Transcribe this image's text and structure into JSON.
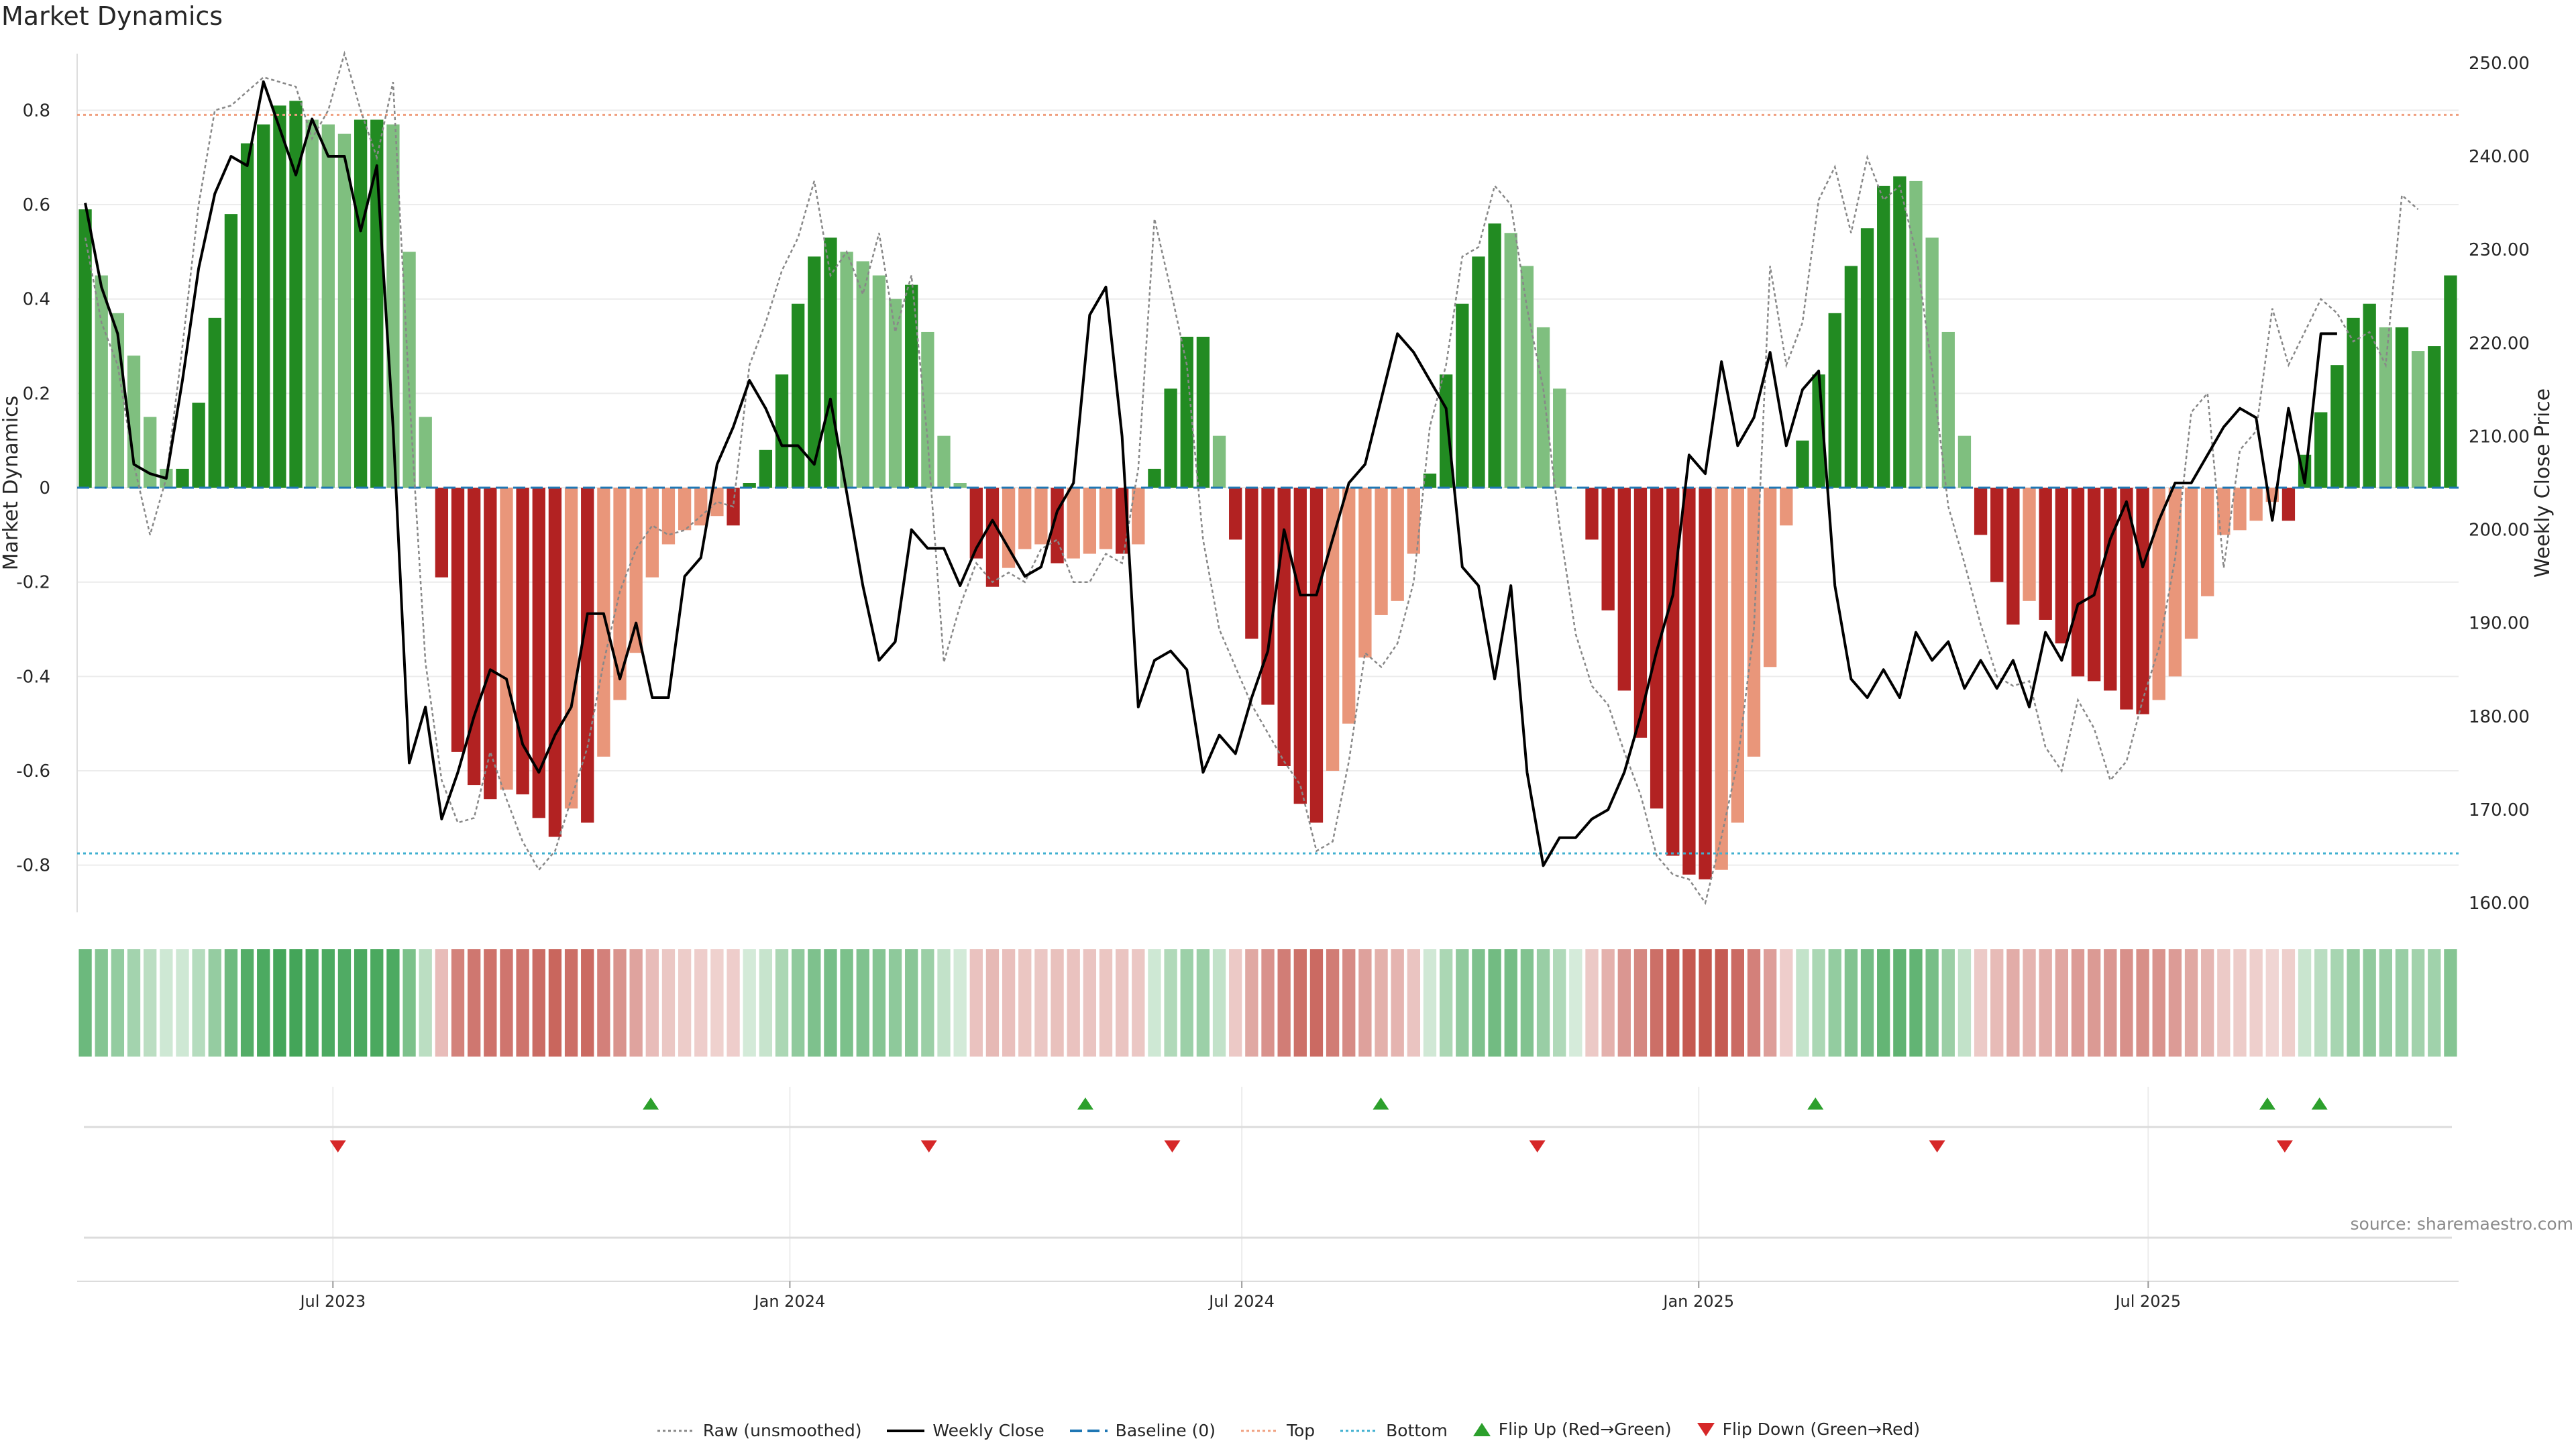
{
  "title": "Market Dynamics",
  "source": "source: sharemaestro.com",
  "chart_data": {
    "type": "bar",
    "title": "Market Dynamics",
    "ylabel": "Market Dynamics",
    "ylabel_right": "Weekly Close Price",
    "ylim": [
      -0.9,
      0.92
    ],
    "ylim_right": [
      159,
      251
    ],
    "yticks": [
      {
        "v": 0.8,
        "l": "0.8"
      },
      {
        "v": 0.6,
        "l": "0.6"
      },
      {
        "v": 0.4,
        "l": "0.4"
      },
      {
        "v": 0.2,
        "l": "0.2"
      },
      {
        "v": 0,
        "l": "0"
      },
      {
        "v": -0.2,
        "l": "-0.2"
      },
      {
        "v": -0.4,
        "l": "-0.4"
      },
      {
        "v": -0.6,
        "l": "-0.6"
      },
      {
        "v": -0.8,
        "l": "-0.8"
      }
    ],
    "yticks_right": [
      {
        "v": 250,
        "l": "250.00"
      },
      {
        "v": 240,
        "l": "240.00"
      },
      {
        "v": 230,
        "l": "230.00"
      },
      {
        "v": 220,
        "l": "220.00"
      },
      {
        "v": 210,
        "l": "210.00"
      },
      {
        "v": 200,
        "l": "200.00"
      },
      {
        "v": 190,
        "l": "190.00"
      },
      {
        "v": 180,
        "l": "180.00"
      },
      {
        "v": 170,
        "l": "170.00"
      },
      {
        "v": 160,
        "l": "160.00"
      }
    ],
    "x_start": "2023-03-20",
    "x_end": "2025-11-03",
    "xticks": [
      {
        "date": "2023-07-01",
        "label": "Jul 2023"
      },
      {
        "date": "2024-01-01",
        "label": "Jan 2024"
      },
      {
        "date": "2024-07-01",
        "label": "Jul 2024"
      },
      {
        "date": "2025-01-01",
        "label": "Jan 2025"
      },
      {
        "date": "2025-07-01",
        "label": "Jul 2025"
      }
    ],
    "top_line": 0.79,
    "bottom_line": -0.775,
    "baseline": 0,
    "colors": {
      "strong_up": "#228b22",
      "weak_up": "#7fbf7f",
      "strong_down": "#b22222",
      "weak_down": "#e9967a",
      "top": "#f0a080",
      "bottom": "#40b0d0",
      "baseline": "#1f77b4",
      "raw": "#888888",
      "close": "#000000",
      "flip_up": "#2ca02c",
      "flip_down": "#d62728"
    },
    "series": [
      {
        "name": "Market Dynamics (bars)",
        "values": [
          0.59,
          0.45,
          0.37,
          0.28,
          0.15,
          0.04,
          0.04,
          0.18,
          0.36,
          0.58,
          0.73,
          0.77,
          0.81,
          0.82,
          0.78,
          0.77,
          0.75,
          0.78,
          0.78,
          0.77,
          0.5,
          0.15,
          -0.19,
          -0.56,
          -0.63,
          -0.66,
          -0.64,
          -0.65,
          -0.7,
          -0.74,
          -0.68,
          -0.71,
          -0.57,
          -0.45,
          -0.35,
          -0.19,
          -0.12,
          -0.09,
          -0.08,
          -0.06,
          -0.08,
          0.01,
          0.08,
          0.24,
          0.39,
          0.49,
          0.53,
          0.5,
          0.48,
          0.45,
          0.4,
          0.43,
          0.33,
          0.11,
          0.01,
          -0.15,
          -0.21,
          -0.17,
          -0.13,
          -0.12,
          -0.16,
          -0.15,
          -0.14,
          -0.13,
          -0.14,
          -0.12,
          0.04,
          0.21,
          0.32,
          0.32,
          0.11,
          -0.11,
          -0.32,
          -0.46,
          -0.59,
          -0.67,
          -0.71,
          -0.6,
          -0.5,
          -0.36,
          -0.27,
          -0.24,
          -0.14,
          0.03,
          0.24,
          0.39,
          0.49,
          0.56,
          0.54,
          0.47,
          0.34,
          0.21,
          0.0,
          -0.11,
          -0.26,
          -0.43,
          -0.53,
          -0.68,
          -0.78,
          -0.82,
          -0.83,
          -0.81,
          -0.71,
          -0.57,
          -0.38,
          -0.08,
          0.1,
          0.24,
          0.37,
          0.47,
          0.55,
          0.64,
          0.66,
          0.65,
          0.53,
          0.33,
          0.11,
          -0.1,
          -0.2,
          -0.29,
          -0.24,
          -0.28,
          -0.33,
          -0.4,
          -0.41,
          -0.43,
          -0.47,
          -0.48,
          -0.45,
          -0.4,
          -0.32,
          -0.23,
          -0.1,
          -0.09,
          -0.07,
          -0.03,
          -0.07,
          0.07,
          0.16,
          0.26,
          0.36,
          0.39,
          0.34,
          0.34,
          0.29,
          0.3,
          0.45
        ]
      },
      {
        "name": "Raw (unsmoothed)",
        "values": [
          0.53,
          0.35,
          0.26,
          0.05,
          -0.1,
          0.02,
          0.3,
          0.6,
          0.8,
          0.81,
          0.84,
          0.87,
          0.86,
          0.85,
          0.74,
          0.8,
          0.92,
          0.8,
          0.7,
          0.86,
          0.2,
          -0.37,
          -0.62,
          -0.71,
          -0.7,
          -0.56,
          -0.66,
          -0.75,
          -0.81,
          -0.77,
          -0.66,
          -0.55,
          -0.37,
          -0.22,
          -0.13,
          -0.08,
          -0.1,
          -0.09,
          -0.06,
          -0.03,
          -0.04,
          0.26,
          0.35,
          0.46,
          0.53,
          0.65,
          0.45,
          0.5,
          0.41,
          0.54,
          0.33,
          0.45,
          0.1,
          -0.37,
          -0.25,
          -0.16,
          -0.2,
          -0.18,
          -0.2,
          -0.13,
          -0.11,
          -0.2,
          -0.2,
          -0.14,
          -0.16,
          0.04,
          0.57,
          0.42,
          0.26,
          -0.11,
          -0.3,
          -0.38,
          -0.46,
          -0.52,
          -0.58,
          -0.63,
          -0.77,
          -0.75,
          -0.58,
          -0.35,
          -0.38,
          -0.33,
          -0.2,
          0.13,
          0.26,
          0.49,
          0.51,
          0.64,
          0.6,
          0.38,
          0.21,
          -0.08,
          -0.31,
          -0.42,
          -0.46,
          -0.56,
          -0.65,
          -0.78,
          -0.82,
          -0.83,
          -0.88,
          -0.74,
          -0.58,
          -0.3,
          0.47,
          0.26,
          0.35,
          0.61,
          0.68,
          0.54,
          0.7,
          0.61,
          0.64,
          0.5,
          0.25,
          -0.04,
          -0.16,
          -0.29,
          -0.4,
          -0.42,
          -0.41,
          -0.55,
          -0.6,
          -0.45,
          -0.51,
          -0.62,
          -0.58,
          -0.45,
          -0.34,
          -0.15,
          0.16,
          0.2,
          -0.17,
          0.08,
          0.12,
          0.38,
          0.26,
          0.33,
          0.4,
          0.37,
          0.31,
          0.33,
          0.26,
          0.62,
          0.59
        ]
      },
      {
        "name": "Weekly Close",
        "values": [
          235,
          226,
          221,
          207,
          206,
          205.5,
          216,
          228,
          236,
          240,
          239,
          248,
          243,
          238,
          244,
          240,
          240,
          232,
          239,
          211,
          175,
          181,
          169,
          174,
          180,
          185,
          184,
          177,
          174,
          178,
          181,
          191,
          191,
          184,
          190,
          182,
          182,
          195,
          197,
          207,
          211,
          216,
          213,
          209,
          209,
          207,
          214,
          204,
          194,
          186,
          188,
          200,
          198,
          198,
          194,
          198,
          201,
          198,
          195,
          196,
          202,
          205,
          223,
          226,
          210,
          181,
          186,
          187,
          185,
          174,
          178,
          176,
          182,
          187,
          200,
          193,
          193,
          199,
          205,
          207,
          214,
          221,
          219,
          216,
          213,
          196,
          194,
          184,
          194,
          174,
          164,
          167,
          167,
          169,
          170,
          174,
          180,
          187,
          193,
          208,
          206,
          218,
          209,
          212,
          219,
          209,
          215,
          217,
          194,
          184,
          182,
          185,
          182,
          189,
          186,
          188,
          183,
          186,
          183,
          186,
          181,
          189,
          186,
          192,
          193,
          199,
          203,
          196,
          201,
          205,
          205,
          208,
          211,
          213,
          212,
          201,
          213,
          205,
          221,
          221
        ]
      }
    ],
    "flip_up_dates": [
      "2023-11-06",
      "2024-04-29",
      "2024-08-26",
      "2025-02-17",
      "2025-08-18",
      "2025-09-08"
    ],
    "flip_down_dates": [
      "2023-07-03",
      "2024-02-26",
      "2024-06-03",
      "2024-10-28",
      "2025-04-07",
      "2025-08-25"
    ]
  },
  "legend": [
    {
      "label": "Raw (unsmoothed)",
      "icon": "dotted-line"
    },
    {
      "label": "Weekly Close",
      "icon": "solid-line"
    },
    {
      "label": "Baseline (0)",
      "icon": "dashed-line"
    },
    {
      "label": "Top",
      "icon": "dotted-line-orange"
    },
    {
      "label": "Bottom",
      "icon": "dotted-line-cyan"
    },
    {
      "label": "Flip Up (Red→Green)",
      "icon": "triangle-up"
    },
    {
      "label": "Flip Down (Green→Red)",
      "icon": "triangle-down"
    }
  ]
}
